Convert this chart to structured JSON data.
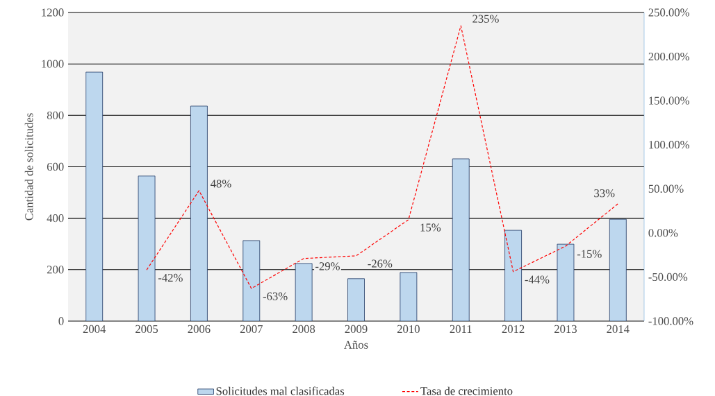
{
  "chart_data": {
    "type": "bar",
    "xlabel": "Años",
    "ylabel": "Cantidad de solicitudes",
    "categories": [
      "2004",
      "2005",
      "2006",
      "2007",
      "2008",
      "2009",
      "2010",
      "2011",
      "2012",
      "2013",
      "2014"
    ],
    "ylim": [
      0,
      1200
    ],
    "yticks": [
      0,
      200,
      400,
      600,
      800,
      1000,
      1200
    ],
    "y2lim": [
      -100,
      250
    ],
    "y2ticks": [
      {
        "value": -100,
        "label": "-100.00%"
      },
      {
        "value": -50,
        "label": "-50.00%"
      },
      {
        "value": 0,
        "label": "0.00%"
      },
      {
        "value": 50,
        "label": "50.00%"
      },
      {
        "value": 100,
        "label": "100.00%"
      },
      {
        "value": 150,
        "label": "150.00%"
      },
      {
        "value": 200,
        "label": "200.00%"
      },
      {
        "value": 250,
        "label": "250.00%"
      }
    ],
    "grid": "y",
    "legend": "bottom",
    "series": [
      {
        "name": "Solicitudes mal clasificadas",
        "color": "#bdd7ee",
        "values": [
          968,
          564,
          836,
          313,
          224,
          165,
          189,
          631,
          353,
          299,
          396
        ]
      },
      {
        "name": "Tasa de crecimiento",
        "type": "line",
        "axis": "y2",
        "color": "#ff0000",
        "line_style": "dashed",
        "values": [
          null,
          -42,
          48,
          -63,
          -29,
          -26,
          15,
          235,
          -44,
          -15,
          33
        ],
        "value_labels": [
          null,
          "-42%",
          "48%",
          "-63%",
          "-29%",
          "-26%",
          "15%",
          "235%",
          "-44%",
          "-15%",
          "33%"
        ]
      }
    ]
  }
}
